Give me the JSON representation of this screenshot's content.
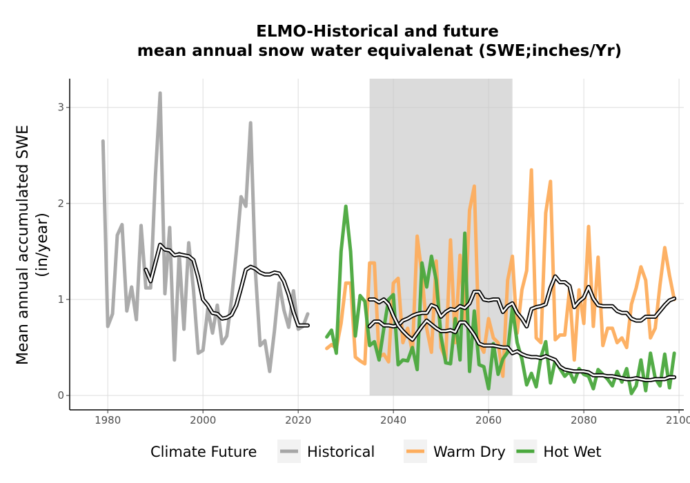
{
  "chart_data": {
    "type": "line",
    "title_line1": "ELMO-Historical and future",
    "title_line2": "mean annual snow water equivalenat (SWE;inches/Yr)",
    "ylabel_line1": "Mean annual accumulated SWE",
    "ylabel_line2": "(in/year)",
    "xlabel": "",
    "xlim": [
      1972,
      2101
    ],
    "ylim": [
      -0.15,
      3.3
    ],
    "xticks": [
      1980,
      2000,
      2020,
      2040,
      2060,
      2080,
      2100
    ],
    "yticks": [
      0,
      1,
      2,
      3
    ],
    "grid": true,
    "shaded_period": [
      2035,
      2065
    ],
    "legend_title": "Climate Future",
    "legend_position": "bottom",
    "series": [
      {
        "name": "Historical",
        "color": "#a6a6a6",
        "x": [
          1979,
          1980,
          1981,
          1982,
          1983,
          1984,
          1985,
          1986,
          1987,
          1988,
          1989,
          1990,
          1991,
          1992,
          1993,
          1994,
          1995,
          1996,
          1997,
          1998,
          1999,
          2000,
          2001,
          2002,
          2003,
          2004,
          2005,
          2006,
          2007,
          2008,
          2009,
          2010,
          2011,
          2012,
          2013,
          2014,
          2015,
          2016,
          2017,
          2018,
          2019,
          2020,
          2021,
          2022
        ],
        "y": [
          2.65,
          0.72,
          0.85,
          1.67,
          1.78,
          0.88,
          1.13,
          0.79,
          1.77,
          1.12,
          1.12,
          2.28,
          3.15,
          1.06,
          1.75,
          0.37,
          1.48,
          0.69,
          1.59,
          1.1,
          0.44,
          0.47,
          0.9,
          0.65,
          0.94,
          0.54,
          0.62,
          1.0,
          1.5,
          2.07,
          1.97,
          2.84,
          1.3,
          0.52,
          0.57,
          0.25,
          0.67,
          1.17,
          0.89,
          0.71,
          1.09,
          0.69,
          0.72,
          0.85
        ]
      },
      {
        "name": "Warm Dry",
        "color": "#fdad5d",
        "x": [
          2026,
          2027,
          2028,
          2029,
          2030,
          2031,
          2032,
          2033,
          2034,
          2035,
          2036,
          2037,
          2038,
          2039,
          2040,
          2041,
          2042,
          2043,
          2044,
          2045,
          2046,
          2047,
          2048,
          2049,
          2050,
          2051,
          2052,
          2053,
          2054,
          2055,
          2056,
          2057,
          2058,
          2059,
          2060,
          2061,
          2062,
          2063,
          2064,
          2065,
          2066,
          2067,
          2068,
          2069,
          2070,
          2071,
          2072,
          2073,
          2074,
          2075,
          2076,
          2077,
          2078,
          2079,
          2080,
          2081,
          2082,
          2083,
          2084,
          2085,
          2086,
          2087,
          2088,
          2089,
          2090,
          2091,
          2092,
          2093,
          2094,
          2095,
          2096,
          2097,
          2098,
          2099
        ],
        "y": [
          0.49,
          0.53,
          0.49,
          0.75,
          1.17,
          1.17,
          0.4,
          0.36,
          0.33,
          1.38,
          1.38,
          0.4,
          0.43,
          0.35,
          1.17,
          1.22,
          0.55,
          0.7,
          0.45,
          1.66,
          1.26,
          0.7,
          0.45,
          1.4,
          0.5,
          0.38,
          1.62,
          0.55,
          1.46,
          0.8,
          1.93,
          2.18,
          0.55,
          0.45,
          0.8,
          0.6,
          0.55,
          0.2,
          1.2,
          1.45,
          0.65,
          1.1,
          1.3,
          2.35,
          0.6,
          0.55,
          1.9,
          2.23,
          0.58,
          0.63,
          0.63,
          1.1,
          0.37,
          1.1,
          0.75,
          1.76,
          0.72,
          1.44,
          0.52,
          0.7,
          0.7,
          0.55,
          0.6,
          0.5,
          0.95,
          1.12,
          1.34,
          1.2,
          0.6,
          0.7,
          1.15,
          1.54,
          1.25,
          1.0
        ]
      },
      {
        "name": "Hot Wet",
        "color": "#4aa83d",
        "x": [
          2026,
          2027,
          2028,
          2029,
          2030,
          2031,
          2032,
          2033,
          2034,
          2035,
          2036,
          2037,
          2038,
          2039,
          2040,
          2041,
          2042,
          2043,
          2044,
          2045,
          2046,
          2047,
          2048,
          2049,
          2050,
          2051,
          2052,
          2053,
          2054,
          2055,
          2056,
          2057,
          2058,
          2059,
          2060,
          2061,
          2062,
          2063,
          2064,
          2065,
          2066,
          2067,
          2068,
          2069,
          2070,
          2071,
          2072,
          2073,
          2074,
          2075,
          2076,
          2077,
          2078,
          2079,
          2080,
          2081,
          2082,
          2083,
          2084,
          2085,
          2086,
          2087,
          2088,
          2089,
          2090,
          2091,
          2092,
          2093,
          2094,
          2095,
          2096,
          2097,
          2098,
          2099
        ],
        "y": [
          0.61,
          0.68,
          0.44,
          1.5,
          1.97,
          1.5,
          0.62,
          1.04,
          0.98,
          0.52,
          0.56,
          0.37,
          0.7,
          1.0,
          1.05,
          0.32,
          0.37,
          0.36,
          0.5,
          0.27,
          1.38,
          1.13,
          1.45,
          1.2,
          0.62,
          0.34,
          0.33,
          0.8,
          0.37,
          1.69,
          0.25,
          0.88,
          0.32,
          0.3,
          0.07,
          0.54,
          0.22,
          0.38,
          0.45,
          0.91,
          0.55,
          0.38,
          0.11,
          0.23,
          0.09,
          0.4,
          0.56,
          0.13,
          0.37,
          0.28,
          0.2,
          0.25,
          0.14,
          0.28,
          0.22,
          0.2,
          0.07,
          0.27,
          0.22,
          0.17,
          0.1,
          0.25,
          0.14,
          0.28,
          0.02,
          0.1,
          0.37,
          0.05,
          0.44,
          0.18,
          0.1,
          0.43,
          0.08,
          0.44
        ]
      },
      {
        "name": "",
        "color": "#000000",
        "x": [
          1988,
          1989,
          1990,
          1991,
          1992,
          1993,
          1994,
          1995,
          1996,
          1997,
          1998,
          1999,
          2000,
          2001,
          2002,
          2003,
          2004,
          2005,
          2006,
          2007,
          2008,
          2009,
          2010,
          2011,
          2012,
          2013,
          2014,
          2015,
          2016,
          2017,
          2018,
          2019,
          2020,
          2021,
          2022
        ],
        "y": [
          1.31,
          1.19,
          1.38,
          1.57,
          1.52,
          1.51,
          1.46,
          1.47,
          1.46,
          1.45,
          1.41,
          1.23,
          1.0,
          0.94,
          0.86,
          0.85,
          0.8,
          0.81,
          0.84,
          0.94,
          1.12,
          1.31,
          1.34,
          1.32,
          1.28,
          1.26,
          1.26,
          1.28,
          1.27,
          1.19,
          1.05,
          0.87,
          0.73,
          0.73,
          0.73
        ]
      },
      {
        "name": "",
        "color": "#000000",
        "x": [
          2035,
          2036,
          2037,
          2038,
          2039,
          2040,
          2041,
          2042,
          2043,
          2044,
          2045,
          2046,
          2047,
          2048,
          2049,
          2050,
          2051,
          2052,
          2053,
          2054,
          2055,
          2056,
          2057,
          2058,
          2059,
          2060,
          2061,
          2062,
          2063,
          2064,
          2065,
          2066,
          2067,
          2068,
          2069,
          2070,
          2071,
          2072,
          2073,
          2074,
          2075,
          2076,
          2077,
          2078,
          2079,
          2080,
          2081,
          2082,
          2083,
          2084,
          2085,
          2086,
          2087,
          2088,
          2089,
          2090,
          2091,
          2092,
          2093,
          2094,
          2095,
          2096,
          2097,
          2098,
          2099
        ],
        "y": [
          0.72,
          0.77,
          0.77,
          0.73,
          0.73,
          0.72,
          0.73,
          0.78,
          0.8,
          0.83,
          0.85,
          0.86,
          0.86,
          0.94,
          0.92,
          0.82,
          0.87,
          0.9,
          0.89,
          0.93,
          0.91,
          0.96,
          1.08,
          1.08,
          1.0,
          0.99,
          1.0,
          1.0,
          0.87,
          0.93,
          0.96,
          0.86,
          0.8,
          0.72,
          0.9,
          0.92,
          0.93,
          0.95,
          1.12,
          1.24,
          1.18,
          1.18,
          1.14,
          0.92,
          0.98,
          1.02,
          1.13,
          1.01,
          0.94,
          0.93,
          0.93,
          0.93,
          0.88,
          0.86,
          0.86,
          0.8,
          0.78,
          0.78,
          0.82,
          0.82,
          0.82,
          0.88,
          0.94,
          0.99,
          1.01
        ]
      },
      {
        "name": "",
        "color": "#000000",
        "x": [
          2035,
          2036,
          2037,
          2038,
          2039,
          2040,
          2041,
          2042,
          2043,
          2044,
          2045,
          2046,
          2047,
          2048,
          2049,
          2050,
          2051,
          2052,
          2053,
          2054,
          2055,
          2056,
          2057,
          2058,
          2059,
          2060,
          2061,
          2062,
          2063,
          2064,
          2065,
          2066,
          2067,
          2068,
          2069,
          2070,
          2071,
          2072,
          2073,
          2074,
          2075,
          2076,
          2077,
          2078,
          2079,
          2080,
          2081,
          2082,
          2083,
          2084,
          2085,
          2086,
          2087,
          2088,
          2089,
          2090,
          2091,
          2092,
          2093,
          2094,
          2095,
          2096,
          2097,
          2098,
          2099
        ],
        "y": [
          1.0,
          1.0,
          0.97,
          1.0,
          0.95,
          0.83,
          0.73,
          0.67,
          0.62,
          0.58,
          0.65,
          0.72,
          0.78,
          0.74,
          0.7,
          0.67,
          0.67,
          0.68,
          0.66,
          0.76,
          0.76,
          0.7,
          0.63,
          0.54,
          0.52,
          0.52,
          0.52,
          0.51,
          0.5,
          0.5,
          0.44,
          0.46,
          0.43,
          0.41,
          0.4,
          0.4,
          0.39,
          0.41,
          0.39,
          0.37,
          0.3,
          0.27,
          0.26,
          0.25,
          0.25,
          0.25,
          0.24,
          0.21,
          0.21,
          0.21,
          0.2,
          0.2,
          0.19,
          0.18,
          0.17,
          0.17,
          0.18,
          0.17,
          0.16,
          0.16,
          0.17,
          0.17,
          0.17,
          0.19,
          0.19
        ]
      }
    ]
  }
}
